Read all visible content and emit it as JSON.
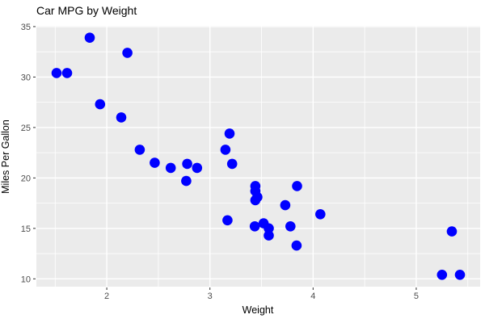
{
  "chart_data": {
    "type": "scatter",
    "title": "Car MPG by Weight",
    "xlabel": "Weight",
    "ylabel": "Miles Per Gallon",
    "x_ticks": [
      2,
      3,
      4,
      5
    ],
    "y_ticks": [
      10,
      15,
      20,
      25,
      30,
      35
    ],
    "x_minor_gridlines": [
      1.5,
      2.5,
      3.5,
      4.5,
      5.5
    ],
    "y_minor_gridlines": [
      12.5,
      17.5,
      22.5,
      27.5,
      32.5
    ],
    "xlim": [
      1.31745,
      5.61955
    ],
    "ylim": [
      9.225,
      35.075
    ],
    "legend": "none",
    "grid": "on",
    "points_wt_mpg": [
      [
        2.62,
        21.0
      ],
      [
        2.875,
        21.0
      ],
      [
        2.32,
        22.8
      ],
      [
        3.215,
        21.4
      ],
      [
        3.44,
        18.7
      ],
      [
        3.46,
        18.1
      ],
      [
        3.57,
        14.3
      ],
      [
        3.19,
        24.4
      ],
      [
        3.15,
        22.8
      ],
      [
        3.44,
        19.2
      ],
      [
        3.44,
        17.8
      ],
      [
        4.07,
        16.4
      ],
      [
        3.73,
        17.3
      ],
      [
        3.78,
        15.2
      ],
      [
        5.25,
        10.4
      ],
      [
        5.424,
        10.4
      ],
      [
        5.345,
        14.7
      ],
      [
        2.2,
        32.4
      ],
      [
        1.615,
        30.4
      ],
      [
        1.835,
        33.9
      ],
      [
        2.465,
        21.5
      ],
      [
        3.52,
        15.5
      ],
      [
        3.435,
        15.2
      ],
      [
        3.84,
        13.3
      ],
      [
        3.845,
        19.2
      ],
      [
        1.935,
        27.3
      ],
      [
        2.14,
        26.0
      ],
      [
        1.513,
        30.4
      ],
      [
        3.17,
        15.8
      ],
      [
        2.77,
        19.7
      ],
      [
        3.57,
        15.0
      ],
      [
        2.78,
        21.4
      ]
    ],
    "colors": {
      "point": "#0000ff",
      "panel_background": "#ebebeb",
      "gridline": "#ffffff",
      "tick_label": "#4d4d4d",
      "tick_mark": "#333333",
      "title_text": "#000000",
      "axis_title_text": "#000000",
      "plot_background": "#ffffff"
    }
  }
}
